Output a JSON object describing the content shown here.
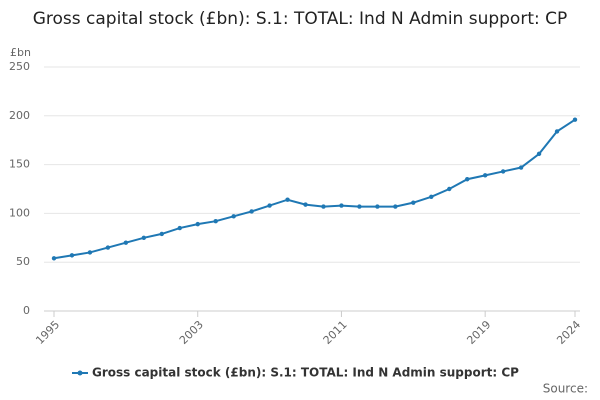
{
  "chart_data": {
    "type": "line",
    "title": "Gross capital stock (£bn): S.1: TOTAL: Ind N Admin support: CP",
    "y_label": "£bn",
    "source": "Source:",
    "x": [
      1995,
      1996,
      1997,
      1998,
      1999,
      2000,
      2001,
      2002,
      2003,
      2004,
      2005,
      2006,
      2007,
      2008,
      2009,
      2010,
      2011,
      2012,
      2013,
      2014,
      2015,
      2016,
      2017,
      2018,
      2019,
      2020,
      2021,
      2022,
      2023,
      2024
    ],
    "series": [
      {
        "name": "Gross capital stock (£bn): S.1: TOTAL: Ind N Admin support: CP",
        "color": "#1f78b4",
        "values": [
          54,
          57,
          60,
          65,
          70,
          75,
          79,
          85,
          89,
          92,
          97,
          102,
          108,
          114,
          109,
          107,
          108,
          107,
          107,
          107,
          111,
          117,
          125,
          135,
          139,
          143,
          147,
          161,
          184,
          196
        ]
      }
    ],
    "xlim": [
      1995,
      2024
    ],
    "xticks": [
      1995,
      2003,
      2011,
      2019,
      2024
    ],
    "ylim": [
      0,
      250
    ],
    "yticks": [
      0,
      50,
      100,
      150,
      200,
      250
    ],
    "grid": true,
    "legend": "bottom"
  }
}
